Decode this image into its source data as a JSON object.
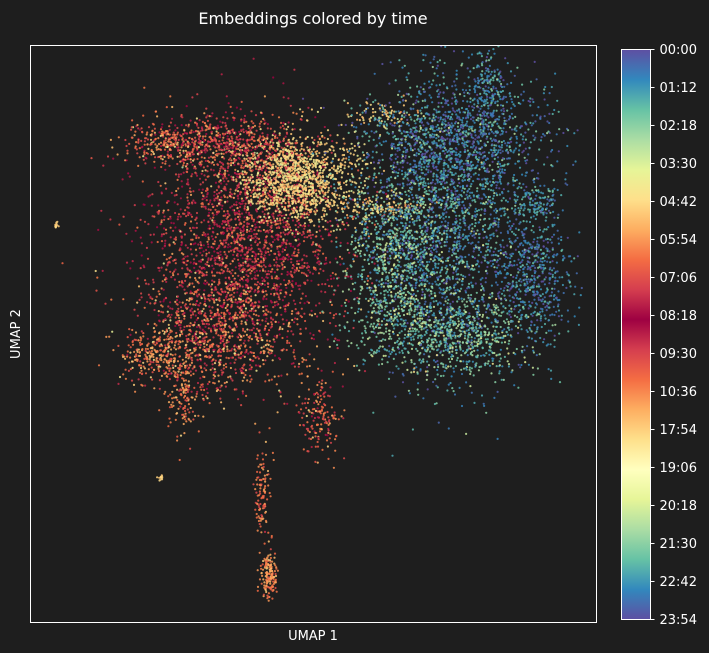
{
  "chart_data": {
    "type": "scatter",
    "title": "Embeddings colored by time",
    "xlabel": "UMAP 1",
    "ylabel": "UMAP 2",
    "x_ticks_shown": false,
    "y_ticks_shown": false,
    "grid": false,
    "xlim": [
      0,
      100
    ],
    "ylim": [
      0,
      100
    ],
    "background": "#1e1e1e",
    "frame_color": "#ffffff",
    "colormap": "Spectral",
    "colorbar": {
      "label": "",
      "tick_labels": [
        "00:00",
        "01:12",
        "02:18",
        "03:30",
        "04:42",
        "05:54",
        "07:06",
        "08:18",
        "09:30",
        "10:36",
        "17:54",
        "19:06",
        "20:18",
        "21:30",
        "22:42",
        "23:54"
      ],
      "tick_positions": [
        0,
        0.0667,
        0.1333,
        0.2,
        0.2667,
        0.3333,
        0.4,
        0.4667,
        0.5333,
        0.6,
        0.6667,
        0.7333,
        0.8,
        0.8667,
        0.9333,
        1
      ],
      "colors_top_to_bottom": [
        "#5e4fa2",
        "#3288bd",
        "#66c2a5",
        "#abdda4",
        "#e6f598",
        "#fee08b",
        "#fdae61",
        "#f46d43",
        "#d53e4f",
        "#9e0142",
        "#d53e4f",
        "#f46d43",
        "#fdae61",
        "#fee08b",
        "#ffffbf",
        "#e6f598",
        "#abdda4",
        "#66c2a5",
        "#3288bd",
        "#5e4fa2"
      ]
    },
    "clusters": [
      {
        "name": "left-red-core",
        "cx": 38,
        "cy": 66,
        "sx": 8.5,
        "sy": 9,
        "n": 2200,
        "t_mean": 0.46,
        "t_sd": 0.07
      },
      {
        "name": "left-upper-cream",
        "cx": 47,
        "cy": 77,
        "sx": 5.5,
        "sy": 3.8,
        "n": 1300,
        "t_mean": 0.27,
        "t_sd": 0.03
      },
      {
        "name": "left-top-arm",
        "cx": 34,
        "cy": 83,
        "sx": 7,
        "sy": 3,
        "n": 650,
        "t_mean": 0.4,
        "t_sd": 0.07
      },
      {
        "name": "left-top-lobe",
        "cx": 24,
        "cy": 83,
        "sx": 3.5,
        "sy": 1.6,
        "n": 180,
        "t_mean": 0.36,
        "t_sd": 0.05
      },
      {
        "name": "left-lower-orange",
        "cx": 33,
        "cy": 50,
        "sx": 7,
        "sy": 5.5,
        "n": 900,
        "t_mean": 0.37,
        "t_sd": 0.06
      },
      {
        "name": "left-lower-spur",
        "cx": 22,
        "cy": 46,
        "sx": 3.5,
        "sy": 2.2,
        "n": 220,
        "t_mean": 0.34,
        "t_sd": 0.04
      },
      {
        "name": "left-down-spur",
        "cx": 27,
        "cy": 39,
        "sx": 1.6,
        "sy": 3.5,
        "n": 140,
        "t_mean": 0.36,
        "t_sd": 0.04
      },
      {
        "name": "mid-down-spur",
        "cx": 51,
        "cy": 36,
        "sx": 2,
        "sy": 3.5,
        "n": 160,
        "t_mean": 0.38,
        "t_sd": 0.05
      },
      {
        "name": "bridge",
        "cx": 62,
        "cy": 72,
        "sx": 4,
        "sy": 1,
        "n": 120,
        "t_mean": 0.27,
        "t_sd": 0.03
      },
      {
        "name": "bridge-upper",
        "cx": 62,
        "cy": 88,
        "sx": 3,
        "sy": 1.2,
        "n": 70,
        "t_mean": 0.28,
        "t_sd": 0.03
      },
      {
        "name": "right-main-blue",
        "cx": 73,
        "cy": 70,
        "sx": 7,
        "sy": 12,
        "n": 2200,
        "t_mean": 0.07,
        "t_sd": 0.05
      },
      {
        "name": "right-upper",
        "cx": 76,
        "cy": 84,
        "sx": 8,
        "sy": 5,
        "n": 1000,
        "t_mean": 0.05,
        "t_sd": 0.05
      },
      {
        "name": "right-left-green",
        "cx": 64,
        "cy": 62,
        "sx": 4.5,
        "sy": 8,
        "n": 850,
        "t_mean": 0.13,
        "t_sd": 0.05
      },
      {
        "name": "right-lower-green",
        "cx": 75,
        "cy": 50,
        "sx": 6.5,
        "sy": 4,
        "n": 750,
        "t_mean": 0.12,
        "t_sd": 0.05
      },
      {
        "name": "right-far-arm",
        "cx": 89,
        "cy": 60,
        "sx": 3.5,
        "sy": 5.5,
        "n": 550,
        "t_mean": 0.05,
        "t_sd": 0.04
      },
      {
        "name": "right-far-tip",
        "cx": 89,
        "cy": 73,
        "sx": 2.5,
        "sy": 1.5,
        "n": 120,
        "t_mean": 0.07,
        "t_sd": 0.04
      },
      {
        "name": "right-top-spike",
        "cx": 81,
        "cy": 93,
        "sx": 1.5,
        "sy": 3,
        "n": 150,
        "t_mean": 0.06,
        "t_sd": 0.04
      },
      {
        "name": "bottom-strand-upper",
        "cx": 41,
        "cy": 22,
        "sx": 0.7,
        "sy": 4,
        "n": 110,
        "t_mean": 0.36,
        "t_sd": 0.03
      },
      {
        "name": "bottom-strand-lower",
        "cx": 42,
        "cy": 8,
        "sx": 0.8,
        "sy": 2,
        "n": 160,
        "t_mean": 0.34,
        "t_sd": 0.03
      },
      {
        "name": "isolated-left",
        "cx": 4.5,
        "cy": 69,
        "sx": 0.25,
        "sy": 0.25,
        "n": 12,
        "t_mean": 0.28,
        "t_sd": 0.01
      },
      {
        "name": "isolated-bottom-left",
        "cx": 23,
        "cy": 25,
        "sx": 0.25,
        "sy": 0.25,
        "n": 12,
        "t_mean": 0.28,
        "t_sd": 0.01
      }
    ]
  }
}
